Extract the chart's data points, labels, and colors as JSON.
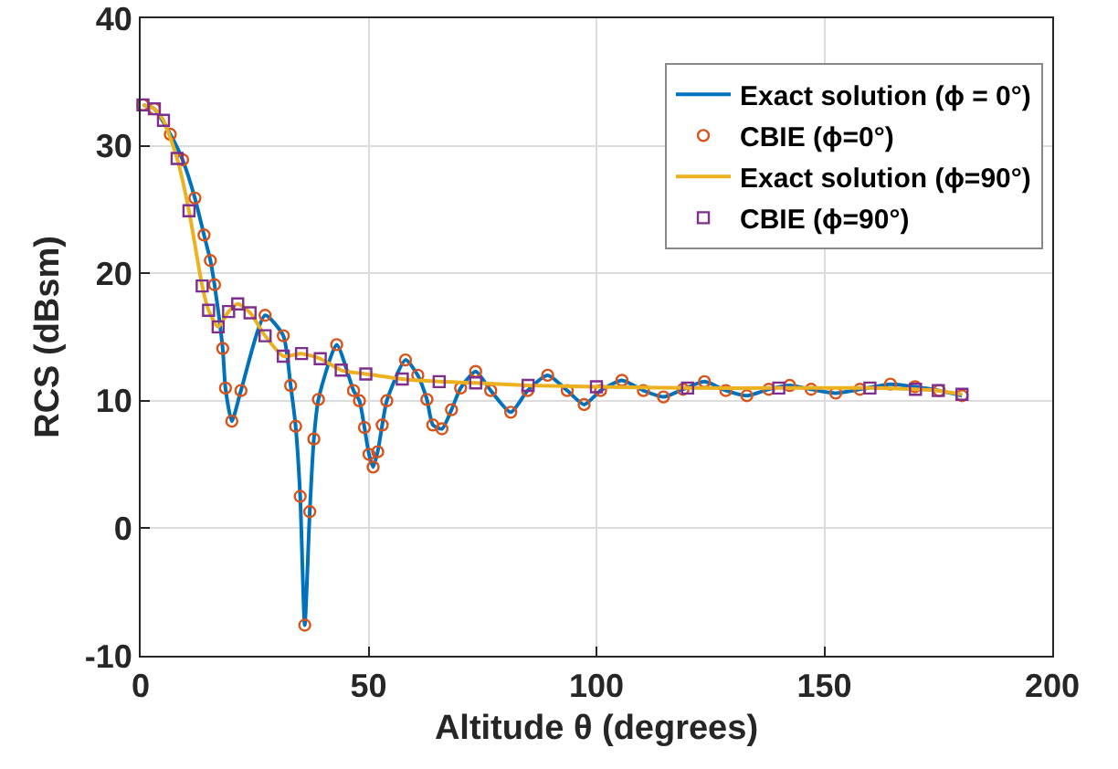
{
  "chart_data": {
    "type": "line",
    "xlabel": "Altitude θ (degrees)",
    "ylabel": "RCS (dBsm)",
    "xlim": [
      0,
      200
    ],
    "ylim": [
      -10,
      40
    ],
    "xticks": [
      0,
      50,
      100,
      150,
      200
    ],
    "yticks": [
      -10,
      0,
      10,
      20,
      30,
      40
    ],
    "grid": true,
    "legend": "top right",
    "series": [
      {
        "name": "Exact solution (ϕ = 0°)",
        "type": "line",
        "color": "#0072bd",
        "marker": "none",
        "line_style": "solid",
        "x": [
          0.5,
          3,
          6.5,
          9.2,
          11.9,
          13.9,
          15.3,
          16.2,
          18,
          18.6,
          20,
          22,
          27.3,
          31.3,
          32.9,
          34,
          35,
          36,
          37.1,
          38,
          39,
          43,
          46.7,
          48,
          49.1,
          50.1,
          51,
          52,
          53,
          54,
          58.1,
          60.8,
          62.8,
          64.1,
          66.1,
          68.2,
          70.2,
          73.5,
          76.8,
          81.2,
          84.9,
          89.3,
          93.6,
          97.3,
          100.9,
          105.6,
          110.3,
          114.7,
          119,
          123.7,
          128.4,
          133,
          137.8,
          142.4,
          147.1,
          152.5,
          157.8,
          164.5,
          169.9,
          175.2,
          180.2
        ],
        "values": [
          33.2,
          32.9,
          30.9,
          28.9,
          25.9,
          23,
          21,
          19.1,
          14.1,
          11,
          8.4,
          10.8,
          16.7,
          15.1,
          11.2,
          8,
          2.5,
          -7.6,
          1.3,
          7,
          10.1,
          14.4,
          10.8,
          10,
          7.9,
          5.8,
          4.8,
          6,
          8.1,
          10,
          13.2,
          12,
          10.1,
          8.1,
          7.8,
          9.3,
          11,
          12.3,
          10.8,
          9.1,
          10.8,
          12,
          10.8,
          9.7,
          10.8,
          11.6,
          10.8,
          10.3,
          10.9,
          11.5,
          10.8,
          10.4,
          10.9,
          11.2,
          10.9,
          10.6,
          10.9,
          11.3,
          11.1,
          10.8,
          10.4
        ]
      },
      {
        "name": "CBIE (ϕ=0°)",
        "type": "scatter",
        "color": "#d95319",
        "marker": "circle",
        "x": [
          0.5,
          3,
          6.5,
          9.2,
          11.9,
          13.9,
          15.3,
          16.2,
          18,
          18.6,
          20,
          22,
          27.3,
          31.3,
          32.9,
          34,
          35,
          36,
          37.1,
          38,
          39,
          43,
          46.7,
          48,
          49.1,
          50.1,
          51,
          52,
          53,
          54,
          58.1,
          60.8,
          62.8,
          64.1,
          66.1,
          68.2,
          70.2,
          73.5,
          76.8,
          81.2,
          84.9,
          89.3,
          93.6,
          97.3,
          100.9,
          105.6,
          110.3,
          114.7,
          119,
          123.7,
          128.4,
          133,
          137.8,
          142.4,
          147.1,
          152.5,
          157.8,
          164.5,
          169.9,
          175.2,
          180.2
        ],
        "values": [
          33.2,
          32.9,
          30.9,
          28.9,
          25.9,
          23,
          21,
          19.1,
          14.1,
          11,
          8.4,
          10.8,
          16.7,
          15.1,
          11.2,
          8,
          2.5,
          -7.6,
          1.3,
          7,
          10.1,
          14.4,
          10.8,
          10,
          7.9,
          5.8,
          4.8,
          6,
          8.1,
          10,
          13.2,
          12,
          10.1,
          8.1,
          7.8,
          9.3,
          11,
          12.3,
          10.8,
          9.1,
          10.8,
          12,
          10.8,
          9.7,
          10.8,
          11.6,
          10.8,
          10.3,
          10.9,
          11.5,
          10.8,
          10.4,
          10.9,
          11.2,
          10.9,
          10.6,
          10.9,
          11.3,
          11.1,
          10.8,
          10.4
        ]
      },
      {
        "name": "Exact solution (ϕ=90°)",
        "type": "line",
        "color": "#edb120",
        "marker": "none",
        "line_style": "solid",
        "x": [
          0.5,
          3,
          5,
          8,
          10.6,
          13.5,
          14.9,
          17,
          19.3,
          21.3,
          24,
          27.3,
          31.3,
          35.3,
          39.4,
          44,
          49.4,
          57.4,
          65.5,
          73.5,
          85,
          100,
          120,
          140,
          160,
          170,
          175,
          180.2
        ],
        "values": [
          33.2,
          32.9,
          32,
          29,
          24.9,
          19,
          17.1,
          15.8,
          17,
          17.6,
          16.9,
          15.1,
          13.5,
          13.7,
          13.3,
          12.4,
          12.1,
          11.7,
          11.5,
          11.4,
          11.2,
          11.1,
          11,
          11,
          11,
          10.9,
          10.8,
          10.5
        ]
      },
      {
        "name": "CBIE (ϕ=90°)",
        "type": "scatter",
        "color": "#7e2f8e",
        "marker": "square",
        "x": [
          0.5,
          3,
          5,
          8,
          10.6,
          13.5,
          14.9,
          17,
          19.3,
          21.3,
          24,
          27.3,
          31.3,
          35.3,
          39.4,
          44,
          49.4,
          57.4,
          65.5,
          73.5,
          85,
          100,
          120,
          140,
          160,
          170,
          175,
          180.2
        ],
        "values": [
          33.2,
          32.9,
          32,
          29,
          24.9,
          19,
          17.1,
          15.8,
          17,
          17.6,
          16.9,
          15.1,
          13.5,
          13.7,
          13.3,
          12.4,
          12.1,
          11.7,
          11.5,
          11.4,
          11.2,
          11.1,
          11,
          11,
          11,
          10.9,
          10.8,
          10.5
        ]
      }
    ]
  }
}
